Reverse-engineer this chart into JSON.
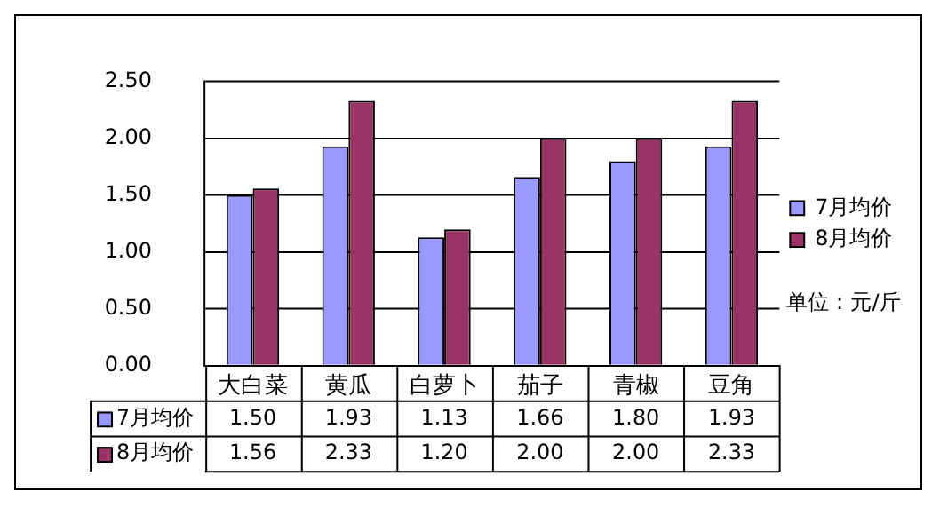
{
  "chart_data": {
    "type": "bar",
    "categories": [
      "大白菜",
      "黄瓜",
      "白萝卜",
      "茄子",
      "青椒",
      "豆角"
    ],
    "series": [
      {
        "name": "7月均价",
        "color": "#9999ff",
        "values": [
          1.5,
          1.93,
          1.13,
          1.66,
          1.8,
          1.93
        ],
        "value_labels": [
          "1.50",
          "1.93",
          "1.13",
          "1.66",
          "1.80",
          "1.93"
        ]
      },
      {
        "name": "8月均价",
        "color": "#993366",
        "values": [
          1.56,
          2.33,
          1.2,
          2.0,
          2.0,
          2.33
        ],
        "value_labels": [
          "1.56",
          "2.33",
          "1.20",
          "2.00",
          "2.00",
          "2.33"
        ]
      }
    ],
    "ylim": [
      0,
      2.5
    ],
    "yticks": [
      {
        "value": 0,
        "label": "0.00"
      },
      {
        "value": 0.5,
        "label": "0.50"
      },
      {
        "value": 1,
        "label": "1.00"
      },
      {
        "value": 1.5,
        "label": "1.50"
      },
      {
        "value": 2,
        "label": "2.00"
      },
      {
        "value": 2.5,
        "label": "2.50"
      }
    ],
    "grid": "y",
    "legend": "right",
    "annotations": [
      "单位：元/斤"
    ]
  }
}
